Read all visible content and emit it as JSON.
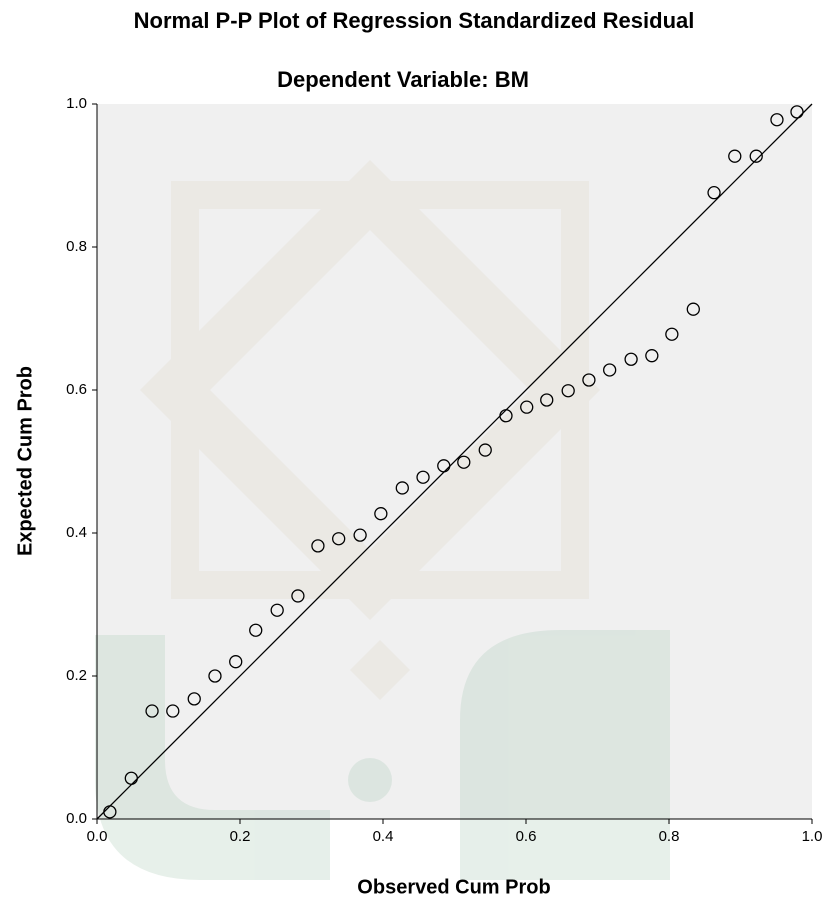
{
  "chart_data": {
    "type": "scatter",
    "title": "Normal P-P Plot of Regression Standardized Residual",
    "subtitle": "Dependent Variable: BM",
    "x_label": "Observed Cum Prob",
    "y_label": "Expected Cum Prob",
    "x": [
      0.018,
      0.048,
      0.077,
      0.106,
      0.136,
      0.165,
      0.194,
      0.222,
      0.252,
      0.281,
      0.309,
      0.338,
      0.368,
      0.397,
      0.427,
      0.456,
      0.485,
      0.513,
      0.543,
      0.572,
      0.601,
      0.629,
      0.659,
      0.688,
      0.717,
      0.747,
      0.776,
      0.804,
      0.834,
      0.863,
      0.892,
      0.922,
      0.951,
      0.979
    ],
    "values": [
      0.01,
      0.057,
      0.151,
      0.151,
      0.168,
      0.2,
      0.22,
      0.264,
      0.292,
      0.312,
      0.382,
      0.392,
      0.397,
      0.427,
      0.463,
      0.478,
      0.494,
      0.499,
      0.516,
      0.564,
      0.576,
      0.586,
      0.599,
      0.614,
      0.628,
      0.643,
      0.648,
      0.678,
      0.713,
      0.876,
      0.927,
      0.927,
      0.978,
      0.989
    ],
    "color": "#000000",
    "xlim": [
      0,
      1
    ],
    "ylim": [
      0,
      1
    ],
    "xticks": [
      {
        "value": 0,
        "label": "0.0"
      },
      0.2,
      0.4,
      0.6,
      0.8,
      {
        "value": 1,
        "label": "1.0"
      }
    ],
    "yticks": [
      {
        "value": 0,
        "label": "0.0"
      },
      0.2,
      0.4,
      0.6,
      0.8,
      {
        "value": 1,
        "label": "1.0"
      }
    ],
    "reference_line": true
  }
}
